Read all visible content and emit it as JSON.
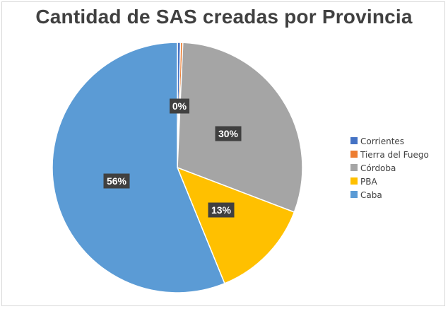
{
  "chart_data": {
    "type": "pie",
    "title": "Cantidad de SAS creadas por Provincia",
    "categories": [
      "Corrientes",
      "Tierra del Fuego",
      "Córdoba",
      "PBA",
      "Caba"
    ],
    "values": [
      0.4,
      0.3,
      30,
      13,
      56
    ],
    "data_labels": [
      "",
      "0%",
      "30%",
      "13%",
      "56%"
    ],
    "colors": [
      "#4472C4",
      "#ED7D31",
      "#A5A5A5",
      "#FFC000",
      "#5B9BD5"
    ],
    "legend_position": "right",
    "start_angle": "top, clockwise"
  }
}
